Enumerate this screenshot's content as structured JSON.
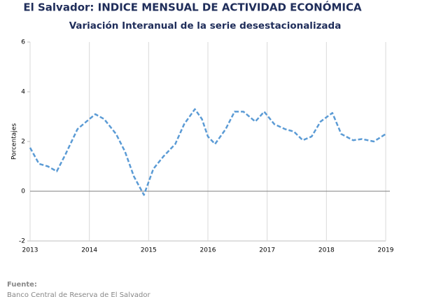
{
  "chart_data": {
    "type": "line",
    "title": "El Salvador: INDICE MENSUAL DE ACTIVIDAD ECONÓMICA",
    "subtitle": "Variación Interanual de la serie desestacionalizada",
    "y_label": "Porcentajes",
    "source_label": "Fuente:",
    "source": "Banco Central de Reserva de El Salvador",
    "x": [
      2013.0,
      2013.15,
      2013.3,
      2013.45,
      2013.6,
      2013.8,
      2013.95,
      2014.1,
      2014.25,
      2014.45,
      2014.6,
      2014.75,
      2014.92,
      2015.08,
      2015.25,
      2015.45,
      2015.6,
      2015.78,
      2015.9,
      2016.0,
      2016.12,
      2016.3,
      2016.45,
      2016.6,
      2016.8,
      2016.95,
      2017.12,
      2017.3,
      2017.45,
      2017.6,
      2017.75,
      2017.9,
      2018.1,
      2018.25,
      2018.45,
      2018.6,
      2018.8,
      2019.0
    ],
    "series": [
      {
        "color": "#5b9bd5",
        "values": [
          1.75,
          1.1,
          1.0,
          0.8,
          1.5,
          2.5,
          2.8,
          3.1,
          2.9,
          2.3,
          1.6,
          0.6,
          -0.15,
          0.9,
          1.4,
          1.9,
          2.7,
          3.3,
          2.9,
          2.2,
          1.9,
          2.5,
          3.2,
          3.2,
          2.8,
          3.2,
          2.7,
          2.5,
          2.4,
          2.05,
          2.2,
          2.8,
          3.15,
          2.3,
          2.05,
          2.1,
          2.0,
          2.3
        ]
      }
    ],
    "xlim": [
      2013,
      2019
    ],
    "xticks": [
      2013,
      2014,
      2015,
      2016,
      2017,
      2018,
      2019
    ],
    "ylim": [
      -2,
      6
    ],
    "yticks": [
      -2,
      0,
      2,
      4,
      6
    ],
    "grid": true
  }
}
